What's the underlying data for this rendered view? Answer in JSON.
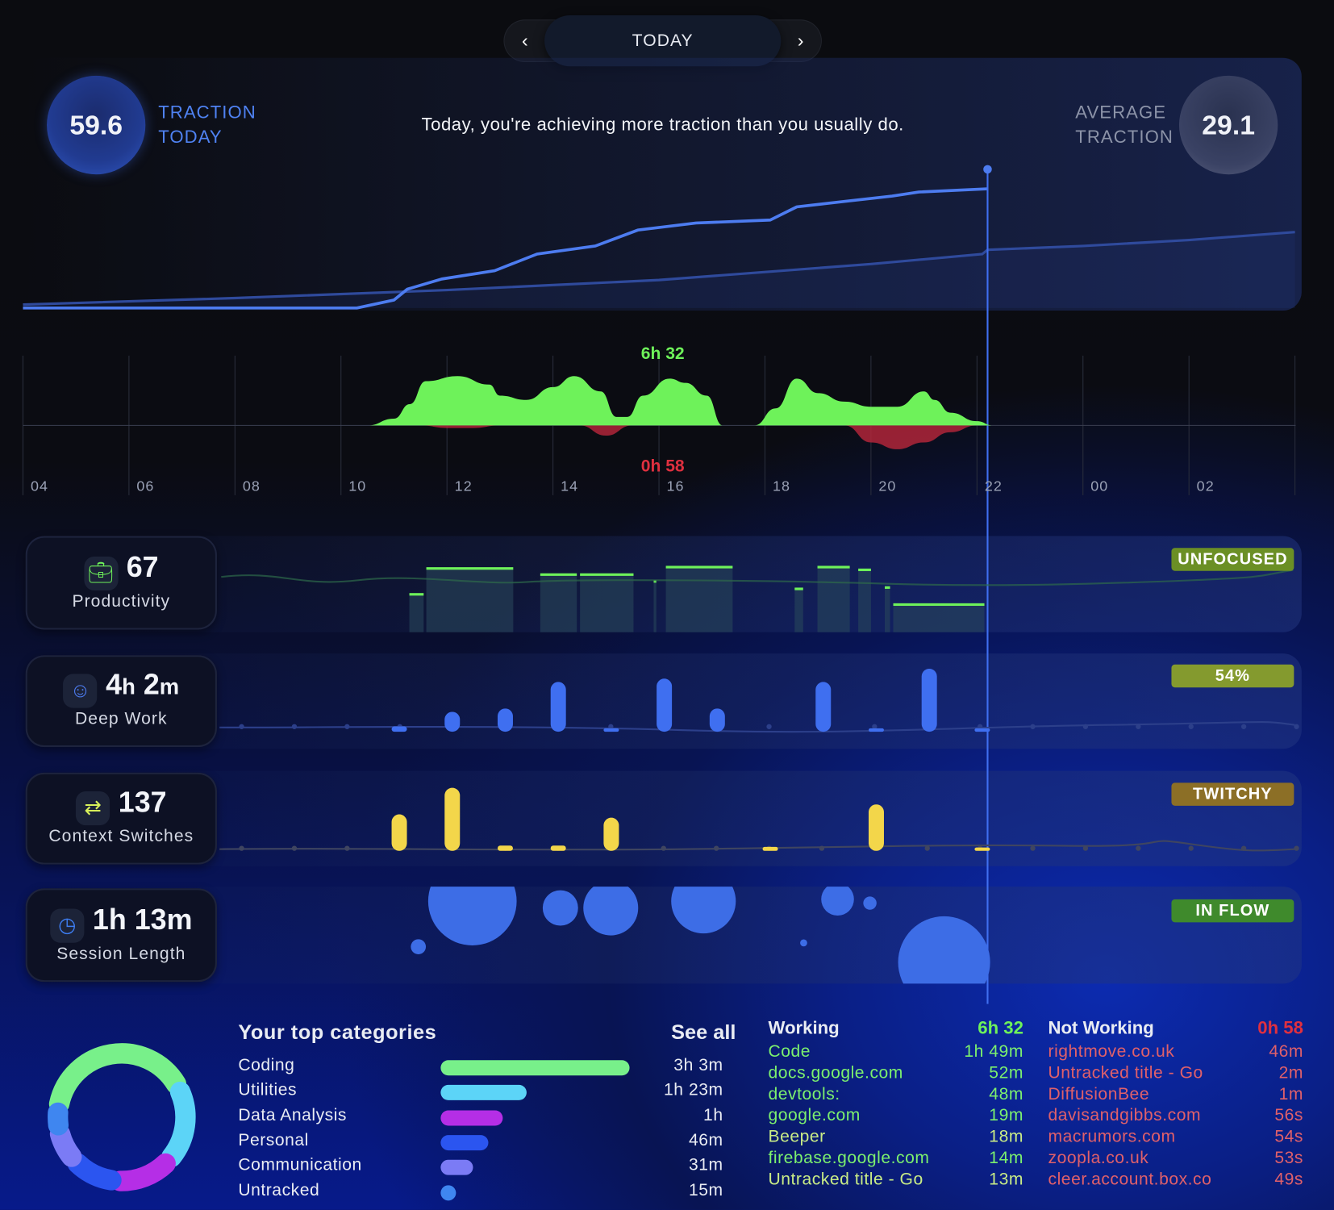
{
  "nav": {
    "label": "TODAY",
    "prev_icon": "chevron-left-icon",
    "next_icon": "chevron-right-icon"
  },
  "traction": {
    "today_value": "59.6",
    "today_label_1": "TRACTION",
    "today_label_2": "TODAY",
    "message": "Today, you're achieving more traction than you usually do.",
    "avg_label_1": "AVERAGE",
    "avg_label_2": "TRACTION",
    "avg_value": "29.1"
  },
  "colors": {
    "today_line": "#4d7cf0",
    "avg_line": "#2f4a9c",
    "working": "#6ef25a",
    "not_working": "#b0263a",
    "productivity": "#6ef25a",
    "deep_work": "#3f6ff0",
    "context": "#f3d64a",
    "session": "#3d6de6"
  },
  "chart_data": [
    {
      "type": "line",
      "title": "Traction",
      "x_unit": "hour of day (24+ = next day)",
      "current_hour": 22.2,
      "series": [
        {
          "name": "Today",
          "values": [
            [
              4,
              0
            ],
            [
              10.3,
              0
            ],
            [
              11,
              4
            ],
            [
              11.25,
              9.4
            ],
            [
              11.9,
              14.5
            ],
            [
              12.9,
              18.7
            ],
            [
              13.7,
              27
            ],
            [
              14.8,
              31
            ],
            [
              15.6,
              39
            ],
            [
              16.7,
              42.5
            ],
            [
              18.1,
              44
            ],
            [
              18.6,
              50.6
            ],
            [
              19.6,
              53.6
            ],
            [
              20.4,
              56
            ],
            [
              20.9,
              58
            ],
            [
              22.2,
              59.6
            ]
          ]
        },
        {
          "name": "Average",
          "values": [
            [
              4,
              1.7
            ],
            [
              8,
              5
            ],
            [
              12,
              9
            ],
            [
              16,
              14
            ],
            [
              20,
              22
            ],
            [
              22.1,
              27
            ],
            [
              22.2,
              29.1
            ],
            [
              24,
              31
            ],
            [
              26,
              34
            ],
            [
              28,
              38
            ]
          ]
        }
      ]
    },
    {
      "type": "area",
      "title": "Working vs Not Working",
      "working_total": "6h 32",
      "not_working_total": "0h 58",
      "x_ticks": [
        "04",
        "06",
        "08",
        "10",
        "12",
        "14",
        "16",
        "18",
        "20",
        "22",
        "00",
        "02"
      ],
      "series": [
        {
          "name": "Working",
          "values": [
            [
              10.5,
              0
            ],
            [
              11,
              8
            ],
            [
              11.3,
              25
            ],
            [
              11.6,
              52
            ],
            [
              12.2,
              58
            ],
            [
              12.8,
              48
            ],
            [
              13,
              35
            ],
            [
              13.5,
              30
            ],
            [
              14,
              45
            ],
            [
              14.4,
              58
            ],
            [
              14.9,
              40
            ],
            [
              15.2,
              10
            ],
            [
              15.4,
              10
            ],
            [
              15.7,
              35
            ],
            [
              16.2,
              55
            ],
            [
              16.5,
              50
            ],
            [
              16.9,
              35
            ],
            [
              17.2,
              0
            ],
            [
              17.8,
              0
            ],
            [
              18.2,
              20
            ],
            [
              18.6,
              55
            ],
            [
              19,
              38
            ],
            [
              19.5,
              28
            ],
            [
              20,
              22
            ],
            [
              20.5,
              22
            ],
            [
              21,
              40
            ],
            [
              21.2,
              30
            ],
            [
              21.5,
              15
            ],
            [
              22,
              5
            ],
            [
              22.3,
              0
            ]
          ]
        },
        {
          "name": "Not Working",
          "values": [
            [
              11.5,
              0
            ],
            [
              12,
              3
            ],
            [
              12.5,
              3
            ],
            [
              13,
              0
            ],
            [
              14.5,
              0
            ],
            [
              15,
              12
            ],
            [
              15.5,
              0
            ],
            [
              19.5,
              0
            ],
            [
              20,
              20
            ],
            [
              20.5,
              28
            ],
            [
              21,
              20
            ],
            [
              21.5,
              8
            ],
            [
              22,
              0
            ]
          ]
        }
      ]
    },
    {
      "type": "bar",
      "title": "Productivity",
      "level_unit": "fraction",
      "bars": [
        [
          11.29,
          11.56,
          0.55
        ],
        [
          11.61,
          13.25,
          0.93
        ],
        [
          13.76,
          14.45,
          0.84
        ],
        [
          14.51,
          15.52,
          0.84
        ],
        [
          15.9,
          15.95,
          0.74
        ],
        [
          16.13,
          17.39,
          0.95
        ],
        [
          18.56,
          18.72,
          0.63
        ],
        [
          18.99,
          19.6,
          0.95
        ],
        [
          19.76,
          20.0,
          0.91
        ],
        [
          20.26,
          20.36,
          0.65
        ],
        [
          20.42,
          22.14,
          0.4
        ]
      ]
    },
    {
      "type": "bar",
      "title": "Deep Work",
      "level_unit": "fraction",
      "bars": [
        [
          11.1,
          0.08
        ],
        [
          12.1,
          0.3
        ],
        [
          13.1,
          0.35
        ],
        [
          14.1,
          0.75
        ],
        [
          15.1,
          0.04
        ],
        [
          16.1,
          0.8
        ],
        [
          17.1,
          0.35
        ],
        [
          19.1,
          0.75
        ],
        [
          20.1,
          0.02
        ],
        [
          21.1,
          0.95
        ],
        [
          22.1,
          0.04
        ]
      ]
    },
    {
      "type": "bar",
      "title": "Context Switches",
      "level_unit": "fraction",
      "bars": [
        [
          11.1,
          0.55
        ],
        [
          12.1,
          0.95
        ],
        [
          13.1,
          0.08
        ],
        [
          14.1,
          0.08
        ],
        [
          15.1,
          0.5
        ],
        [
          18.1,
          0.06
        ],
        [
          20.1,
          0.7
        ],
        [
          22.1,
          0.03
        ]
      ]
    },
    {
      "type": "scatter",
      "title": "Session Length",
      "size_unit": "relative",
      "points": [
        [
          11.46,
          0.62,
          0.17
        ],
        [
          12.48,
          0.15,
          1.0
        ],
        [
          14.14,
          0.22,
          0.4
        ],
        [
          15.09,
          0.22,
          0.62
        ],
        [
          16.84,
          0.15,
          0.73
        ],
        [
          18.73,
          0.58,
          0.08
        ],
        [
          19.37,
          0.13,
          0.37
        ],
        [
          19.98,
          0.17,
          0.15
        ],
        [
          21.38,
          0.78,
          1.04
        ]
      ]
    }
  ],
  "metrics": [
    {
      "value": "67",
      "label": "Productivity",
      "icon": "briefcase-icon",
      "badge": "UNFOCUSED",
      "badge_color": "#6b8f25"
    },
    {
      "value_h": "4",
      "unit_h": "h",
      "value_m": "2",
      "unit_m": "m",
      "label": "Deep Work",
      "icon": "head-icon",
      "badge": "54%",
      "badge_color": "#849a2e"
    },
    {
      "value": "137",
      "label": "Context Switches",
      "icon": "swap-arrows-icon",
      "badge": "TWITCHY",
      "badge_color": "#8c6f26"
    },
    {
      "value": "1h 13m",
      "label": "Session Length",
      "icon": "clock-icon",
      "badge": "IN FLOW",
      "badge_color": "#3f8a2c"
    }
  ],
  "categories": {
    "title": "Your top categories",
    "see_all": "See all",
    "items": [
      {
        "name": "Coding",
        "value": "3h 3m",
        "minutes": 183,
        "color": "#78f08a"
      },
      {
        "name": "Utilities",
        "value": "1h 23m",
        "minutes": 83,
        "color": "#5cd4f7"
      },
      {
        "name": "Data Analysis",
        "value": "1h",
        "minutes": 60,
        "color": "#b52ee6"
      },
      {
        "name": "Personal",
        "value": "46m",
        "minutes": 46,
        "color": "#2b55f0"
      },
      {
        "name": "Communication",
        "value": "31m",
        "minutes": 31,
        "color": "#7b7bf5"
      },
      {
        "name": "Untracked",
        "value": "15m",
        "minutes": 15,
        "color": "#3f86f0"
      }
    ]
  },
  "working": {
    "title": "Working",
    "total": "6h 32",
    "items": [
      {
        "name": "Code",
        "value": "1h 49m"
      },
      {
        "name": "docs.google.com",
        "value": "52m"
      },
      {
        "name": "devtools:",
        "value": "48m"
      },
      {
        "name": "google.com",
        "value": "19m"
      },
      {
        "name": "Beeper",
        "value": "18m"
      },
      {
        "name": "firebase.google.com",
        "value": "14m"
      },
      {
        "name": "Untracked title - Go",
        "value": "13m"
      }
    ]
  },
  "not_working": {
    "title": "Not Working",
    "total": "0h 58",
    "items": [
      {
        "name": "rightmove.co.uk",
        "value": "46m"
      },
      {
        "name": "Untracked title - Go",
        "value": "2m"
      },
      {
        "name": "DiffusionBee",
        "value": "1m"
      },
      {
        "name": "davisandgibbs.com",
        "value": "56s"
      },
      {
        "name": "macrumors.com",
        "value": "54s"
      },
      {
        "name": "zoopla.co.uk",
        "value": "53s"
      },
      {
        "name": "cleer.account.box.co",
        "value": "49s"
      }
    ]
  }
}
